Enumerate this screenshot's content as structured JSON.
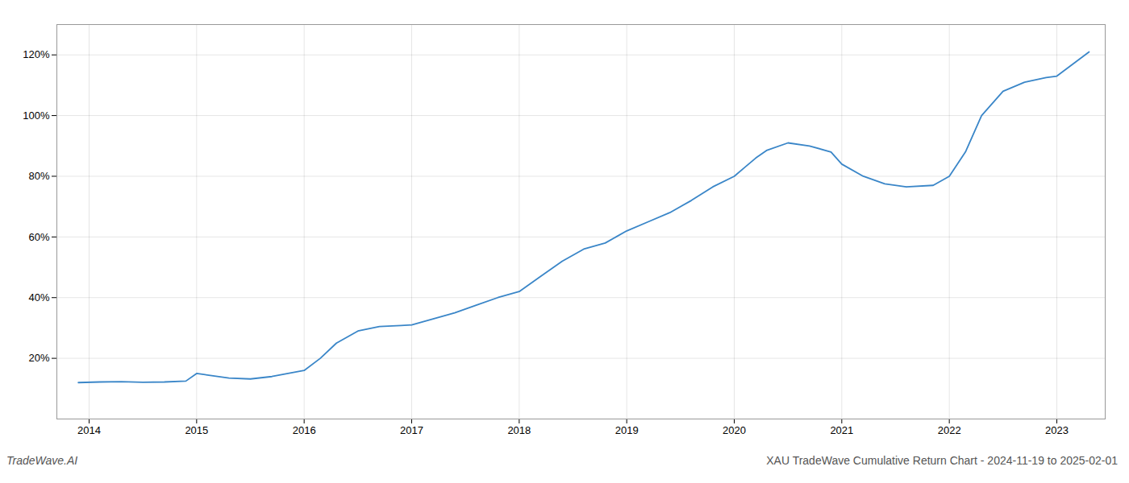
{
  "chart_data": {
    "type": "line",
    "title": "XAU TradeWave Cumulative Return Chart - 2024-11-19 to 2025-02-01",
    "annotations": [
      "TradeWave.AI"
    ],
    "x": [
      2013.9,
      2014.1,
      2014.3,
      2014.5,
      2014.7,
      2014.9,
      2015.0,
      2015.1,
      2015.3,
      2015.5,
      2015.7,
      2015.85,
      2016.0,
      2016.15,
      2016.3,
      2016.5,
      2016.7,
      2016.9,
      2017.0,
      2017.2,
      2017.4,
      2017.6,
      2017.8,
      2018.0,
      2018.2,
      2018.4,
      2018.6,
      2018.8,
      2019.0,
      2019.2,
      2019.4,
      2019.6,
      2019.8,
      2020.0,
      2020.1,
      2020.2,
      2020.3,
      2020.5,
      2020.7,
      2020.9,
      2021.0,
      2021.2,
      2021.4,
      2021.6,
      2021.85,
      2022.0,
      2022.15,
      2022.3,
      2022.5,
      2022.7,
      2022.9,
      2023.0,
      2023.15,
      2023.3
    ],
    "values": [
      12,
      12.2,
      12.3,
      12.1,
      12.2,
      12.5,
      15.0,
      14.5,
      13.5,
      13.2,
      14.0,
      15.0,
      16.0,
      20.0,
      25.0,
      29.0,
      30.5,
      30.8,
      31.0,
      33.0,
      35.0,
      37.5,
      40.0,
      42.0,
      47.0,
      52.0,
      56.0,
      58.0,
      62.0,
      65.0,
      68.0,
      72.0,
      76.5,
      80.0,
      83.0,
      86.0,
      88.5,
      91.0,
      90.0,
      88.0,
      84.0,
      80.0,
      77.5,
      76.5,
      77.0,
      80.0,
      88.0,
      100.0,
      108.0,
      111.0,
      112.5,
      113.0,
      117.0,
      121.0
    ],
    "color": "#3a86c8",
    "xlim": [
      2013.7,
      2023.45
    ],
    "xticks": [
      2014,
      2015,
      2016,
      2017,
      2018,
      2019,
      2020,
      2021,
      2022,
      2023
    ],
    "ylim": [
      0,
      130
    ],
    "yticks": [
      {
        "value": 20,
        "label": "20%"
      },
      {
        "value": 40,
        "label": "40%"
      },
      {
        "value": 60,
        "label": "60%"
      },
      {
        "value": 80,
        "label": "80%"
      },
      {
        "value": 100,
        "label": "100%"
      },
      {
        "value": 120,
        "label": "120%"
      }
    ],
    "grid": true
  }
}
